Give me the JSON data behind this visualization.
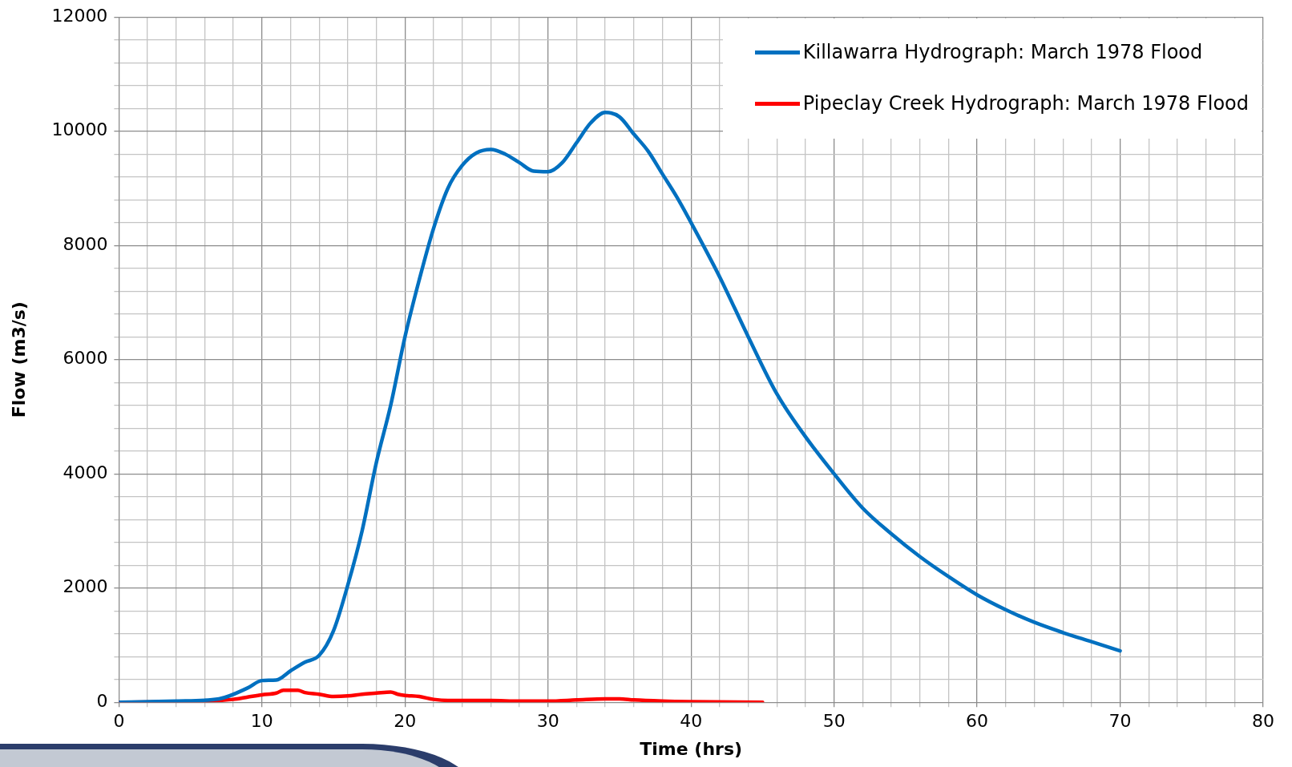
{
  "chart_data": {
    "type": "line",
    "xlabel": "Time (hrs)",
    "ylabel": "Flow (m3/s)",
    "xlim": [
      0,
      80
    ],
    "xticks": [
      0,
      {
        "value": 2,
        "label": null
      },
      {
        "value": 4,
        "label": null
      },
      {
        "value": 6,
        "label": null
      },
      {
        "value": 8,
        "label": null
      },
      10,
      {
        "value": 12,
        "label": null
      },
      {
        "value": 14,
        "label": null
      },
      {
        "value": 16,
        "label": null
      },
      {
        "value": 18,
        "label": null
      },
      20,
      {
        "value": 22,
        "label": null
      },
      {
        "value": 24,
        "label": null
      },
      {
        "value": 26,
        "label": null
      },
      {
        "value": 28,
        "label": null
      },
      30,
      {
        "value": 32,
        "label": null
      },
      {
        "value": 34,
        "label": null
      },
      {
        "value": 36,
        "label": null
      },
      {
        "value": 38,
        "label": null
      },
      40,
      {
        "value": 42,
        "label": null
      },
      {
        "value": 44,
        "label": null
      },
      {
        "value": 46,
        "label": null
      },
      {
        "value": 48,
        "label": null
      },
      50,
      {
        "value": 52,
        "label": null
      },
      {
        "value": 54,
        "label": null
      },
      {
        "value": 56,
        "label": null
      },
      {
        "value": 58,
        "label": null
      },
      60,
      {
        "value": 62,
        "label": null
      },
      {
        "value": 64,
        "label": null
      },
      {
        "value": 66,
        "label": null
      },
      {
        "value": 68,
        "label": null
      },
      70,
      {
        "value": 72,
        "label": null
      },
      {
        "value": 74,
        "label": null
      },
      {
        "value": 76,
        "label": null
      },
      {
        "value": 78,
        "label": null
      },
      80
    ],
    "ylim": [
      0,
      12000
    ],
    "yticks": [
      0,
      {
        "value": 400,
        "label": null
      },
      {
        "value": 800,
        "label": null
      },
      {
        "value": 1200,
        "label": null
      },
      {
        "value": 1600,
        "label": null
      },
      2000,
      {
        "value": 2400,
        "label": null
      },
      {
        "value": 2800,
        "label": null
      },
      {
        "value": 3200,
        "label": null
      },
      {
        "value": 3600,
        "label": null
      },
      4000,
      {
        "value": 4400,
        "label": null
      },
      {
        "value": 4800,
        "label": null
      },
      {
        "value": 5200,
        "label": null
      },
      {
        "value": 5600,
        "label": null
      },
      6000,
      {
        "value": 6400,
        "label": null
      },
      {
        "value": 6800,
        "label": null
      },
      {
        "value": 7200,
        "label": null
      },
      {
        "value": 7600,
        "label": null
      },
      8000,
      {
        "value": 8400,
        "label": null
      },
      {
        "value": 8800,
        "label": null
      },
      {
        "value": 9200,
        "label": null
      },
      {
        "value": 9600,
        "label": null
      },
      10000,
      {
        "value": 10400,
        "label": null
      },
      {
        "value": 10800,
        "label": null
      },
      {
        "value": 11200,
        "label": null
      },
      {
        "value": 11600,
        "label": null
      },
      12000
    ],
    "grid": true,
    "legend": "top right",
    "series": [
      {
        "name": "Killawarra Hydrograph: March 1978 Flood",
        "color": "#0070c0",
        "x": [
          0,
          4,
          7,
          9,
          10,
          11,
          12,
          13,
          14,
          15,
          16,
          17,
          18,
          19,
          20,
          21,
          22,
          23,
          24,
          25,
          26,
          27,
          28,
          29,
          30,
          31,
          32,
          33,
          34,
          35,
          36,
          37,
          38,
          39,
          40,
          42,
          44,
          46,
          48,
          50,
          52,
          54,
          56,
          58,
          60,
          62,
          64,
          66,
          68,
          70
        ],
        "values": [
          0,
          20,
          60,
          250,
          380,
          390,
          550,
          700,
          820,
          1250,
          2050,
          3000,
          4200,
          5200,
          6400,
          7400,
          8300,
          9000,
          9400,
          9620,
          9680,
          9600,
          9450,
          9300,
          9290,
          9450,
          9800,
          10150,
          10330,
          10250,
          9950,
          9650,
          9250,
          8850,
          8400,
          7450,
          6400,
          5400,
          4650,
          4000,
          3400,
          2950,
          2550,
          2200,
          1880,
          1620,
          1400,
          1220,
          1060,
          900
        ]
      },
      {
        "name": "Pipeclay Creek Hydrograph: March 1978 Flood",
        "color": "#ff0000",
        "x": [
          0,
          6,
          8,
          9,
          10,
          11,
          11.5,
          12.5,
          13,
          14,
          15,
          16,
          17,
          18,
          19,
          19.5,
          20,
          21,
          22,
          23,
          26,
          28,
          30,
          32,
          34,
          35,
          36,
          38,
          40,
          45
        ],
        "values": [
          0,
          20,
          50,
          90,
          130,
          160,
          210,
          210,
          170,
          140,
          100,
          110,
          140,
          160,
          180,
          140,
          120,
          100,
          50,
          30,
          30,
          20,
          20,
          40,
          60,
          60,
          40,
          20,
          10,
          0
        ]
      }
    ]
  }
}
